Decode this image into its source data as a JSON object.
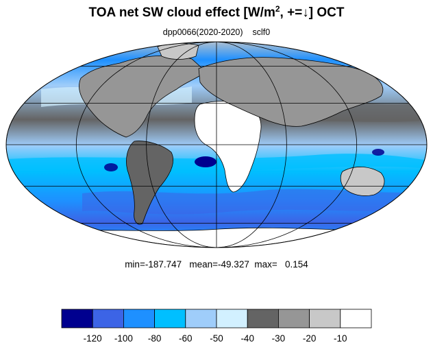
{
  "title": {
    "main": "TOA net SW cloud effect [W/m",
    "superscript": "2",
    "suffix": ", +=↓]  OCT"
  },
  "subtitle": {
    "run": "dpp0066(2020-2020)",
    "variable": "sclf0"
  },
  "stats": {
    "min_label": "min=",
    "min": "-187.747",
    "mean_label": "mean=",
    "mean": "-49.327",
    "max_label": "max=",
    "max": "0.154"
  },
  "map": {
    "projection": "Mollweide",
    "background_color": "#ffffff",
    "outline_color": "#000000",
    "graticule_color": "#000000",
    "lon_lines_deg": [
      -180,
      -120,
      -60,
      0,
      60,
      120,
      180
    ],
    "lat_lines_deg": [
      -60,
      -30,
      0,
      30,
      60
    ]
  },
  "colorbar": {
    "levels": [
      "-120",
      "-100",
      "-80",
      "-60",
      "-50",
      "-40",
      "-30",
      "-20",
      "-10"
    ],
    "colors": [
      "#00008f",
      "#3c64e6",
      "#1e90ff",
      "#00bfff",
      "#9fcdfa",
      "#d2f0ff",
      "#646464",
      "#969696",
      "#c8c8c8",
      "#ffffff"
    ]
  }
}
